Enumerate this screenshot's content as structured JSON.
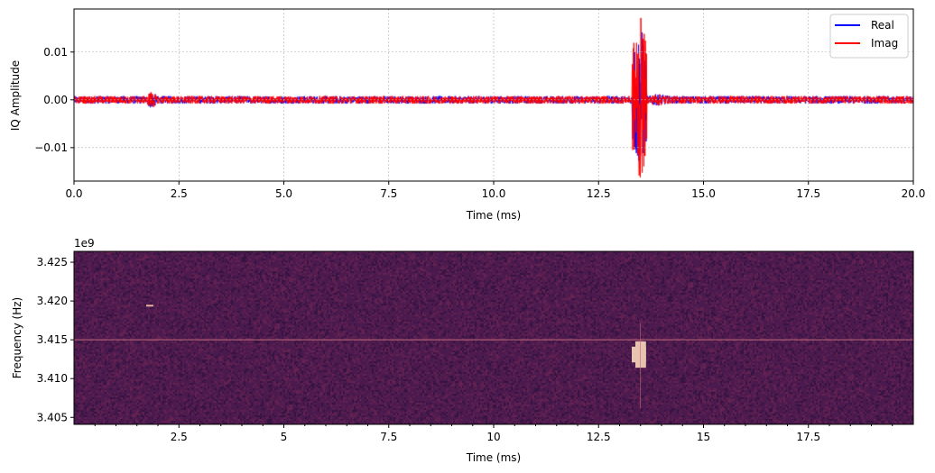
{
  "chart_data": [
    {
      "type": "line",
      "xlabel": "Time (ms)",
      "ylabel": "IQ Amplitude",
      "xlim": [
        0,
        20
      ],
      "ylim": [
        -0.017,
        0.019
      ],
      "xticks": [
        "0.0",
        "2.5",
        "5.0",
        "7.5",
        "10.0",
        "12.5",
        "15.0",
        "17.5",
        "20.0"
      ],
      "xtick_values": [
        0,
        2.5,
        5,
        7.5,
        10,
        12.5,
        15,
        17.5,
        20
      ],
      "yticks": [
        "−0.01",
        "0.00",
        "0.01"
      ],
      "ytick_values": [
        -0.01,
        0,
        0.01
      ],
      "grid": true,
      "legend_position": "top-right",
      "series": [
        {
          "name": "Real",
          "color": "#0000ff",
          "noise_amplitude": 0.0008,
          "bursts": [
            {
              "start": 1.75,
              "end": 1.95,
              "peak": 0.0018
            },
            {
              "start": 13.3,
              "end": 13.65,
              "peak": 0.0155
            },
            {
              "start": 13.65,
              "end": 14.2,
              "peak": 0.0012
            }
          ]
        },
        {
          "name": "Imag",
          "color": "#ff0000",
          "noise_amplitude": 0.0008,
          "bursts": [
            {
              "start": 1.75,
              "end": 1.95,
              "peak": 0.0018
            },
            {
              "start": 13.3,
              "end": 13.65,
              "peak": 0.0175
            },
            {
              "start": 13.65,
              "end": 14.2,
              "peak": 0.0012
            }
          ]
        }
      ]
    },
    {
      "type": "heatmap",
      "xlabel": "Time (ms)",
      "ylabel": "Frequency (Hz)",
      "y_offset_label": "1e9",
      "xlim": [
        0,
        20
      ],
      "ylim": [
        3.4041,
        3.4264
      ],
      "xticks": [
        "2.5",
        "5",
        "7.5",
        "10",
        "12.5",
        "15",
        "17.5"
      ],
      "xtick_values": [
        2.5,
        5,
        7.5,
        10,
        12.5,
        15,
        17.5
      ],
      "yticks": [
        "3.405",
        "3.410",
        "3.415",
        "3.420",
        "3.425"
      ],
      "ytick_values": [
        3.405,
        3.41,
        3.415,
        3.42,
        3.425
      ],
      "background_color": "#4a1a4e",
      "features": [
        {
          "kind": "tone",
          "freq": 3.415,
          "start": 0,
          "end": 20,
          "color": "#c06a7a"
        },
        {
          "kind": "burst",
          "start": 13.29,
          "end": 13.63,
          "freq_low": 3.4114,
          "freq_high": 3.4148,
          "color": "#e8c4b0"
        },
        {
          "kind": "blip",
          "start": 1.72,
          "end": 1.89,
          "freq": 3.4194,
          "color": "#e8b0a0"
        }
      ]
    }
  ]
}
